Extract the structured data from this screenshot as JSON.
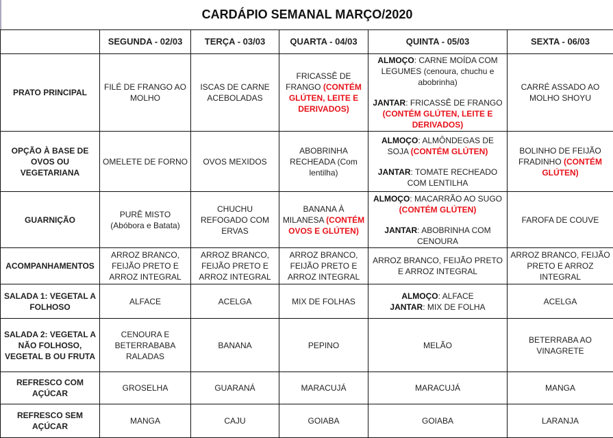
{
  "title": "CARDÁPIO SEMANAL MARÇO/2020",
  "colors": {
    "allergen_warning": "#e8121a",
    "border": "#111111"
  },
  "days": [
    "SEGUNDA - 02/03",
    "TERÇA - 03/03",
    "QUARTA - 04/03",
    "QUINTA - 05/03",
    "SEXTA - 06/03"
  ],
  "rows": [
    {
      "label": "PRATO PRINCIPAL",
      "cells": [
        [
          [
            {
              "t": "FILÉ DE FRANGO AO MOLHO"
            }
          ]
        ],
        [
          [
            {
              "t": "ISCAS DE CARNE ACEBOLADAS"
            }
          ]
        ],
        [
          [
            {
              "t": "FRICASSÊ DE FRANGO "
            },
            {
              "t": "(CONTÉM GLÚTEN, LEITE E DERIVADOS)",
              "s": "r"
            }
          ]
        ],
        [
          [
            {
              "t": "ALMOÇO",
              "s": "b"
            },
            {
              "t": ": CARNE MOÍDA COM LEGUMES  (cenoura, chuchu e abobrinha)"
            }
          ],
          "gap",
          [
            {
              "t": "JANTAR",
              "s": "b"
            },
            {
              "t": ": FRICASSÊ DE FRANGO "
            },
            {
              "t": "(CONTÉM GLÚTEN, LEITE E DERIVADOS)",
              "s": "r"
            }
          ]
        ],
        [
          [
            {
              "t": "CARRÉ ASSADO AO MOLHO SHOYU"
            }
          ]
        ]
      ]
    },
    {
      "label": "OPÇÃO À BASE DE OVOS OU VEGETARIANA",
      "cells": [
        [
          [
            {
              "t": "OMELETE DE FORNO"
            }
          ]
        ],
        [
          [
            {
              "t": "OVOS MEXIDOS"
            }
          ]
        ],
        [
          [
            {
              "t": "ABOBRINHA RECHEADA    (Com lentilha)"
            }
          ]
        ],
        [
          [
            {
              "t": "ALMOÇO",
              "s": "b"
            },
            {
              "t": ": ALMÔNDEGAS DE SOJA "
            },
            {
              "t": "(CONTÉM GLÚTEN)",
              "s": "r"
            }
          ],
          "gap",
          [
            {
              "t": "JANTAR",
              "s": "b"
            },
            {
              "t": ": TOMATE RECHEADO COM LENTILHA"
            }
          ]
        ],
        [
          [
            {
              "t": "BOLINHO DE FEIJÃO FRADINHO "
            },
            {
              "t": "(CONTÉM GLÚTEN)",
              "s": "r"
            }
          ]
        ]
      ]
    },
    {
      "label": "GUARNIÇÃO",
      "cells": [
        [
          [
            {
              "t": "PURÊ MISTO (Abóbora e Batata)"
            }
          ]
        ],
        [
          [
            {
              "t": "CHUCHU REFOGADO COM ERVAS"
            }
          ]
        ],
        [
          [
            {
              "t": "BANANA À MILANESA "
            },
            {
              "t": "(CONTÉM OVOS E GLÚTEN)",
              "s": "r"
            }
          ]
        ],
        [
          [
            {
              "t": "ALMOÇO",
              "s": "b"
            },
            {
              "t": ": MACARRÃO AO SUGO "
            },
            {
              "t": "(CONTÉM GLÚTEN)",
              "s": "r"
            }
          ],
          "gap",
          [
            {
              "t": "JANTAR",
              "s": "b"
            },
            {
              "t": ": ABOBRINHA COM CENOURA"
            }
          ]
        ],
        [
          [
            {
              "t": "FAROFA DE COUVE"
            }
          ]
        ]
      ]
    },
    {
      "label": "ACOMPANHAMENTOS",
      "cells": [
        [
          [
            {
              "t": "ARROZ BRANCO, FEIJÃO PRETO E ARROZ INTEGRAL"
            }
          ]
        ],
        [
          [
            {
              "t": "ARROZ BRANCO, FEIJÃO PRETO E ARROZ INTEGRAL"
            }
          ]
        ],
        [
          [
            {
              "t": "ARROZ BRANCO, FEIJÃO PRETO E ARROZ INTEGRAL"
            }
          ]
        ],
        [
          [
            {
              "t": "ARROZ BRANCO, FEIJÃO PRETO E ARROZ INTEGRAL"
            }
          ]
        ],
        [
          [
            {
              "t": "ARROZ BRANCO, FEIJÃO PRETO E ARROZ INTEGRAL"
            }
          ]
        ]
      ]
    },
    {
      "label": "SALADA 1: VEGETAL A FOLHOSO",
      "cells": [
        [
          [
            {
              "t": "ALFACE"
            }
          ]
        ],
        [
          [
            {
              "t": "ACELGA"
            }
          ]
        ],
        [
          [
            {
              "t": "MIX DE FOLHAS"
            }
          ]
        ],
        [
          [
            {
              "t": "ALMOÇO",
              "s": "b"
            },
            {
              "t": ": ALFACE"
            }
          ],
          [
            {
              "t": "JANTAR",
              "s": "b"
            },
            {
              "t": ": MIX DE FOLHA"
            }
          ]
        ],
        [
          [
            {
              "t": "ACELGA"
            }
          ]
        ]
      ]
    },
    {
      "label": "SALADA 2: VEGETAL A NÃO FOLHOSO, VEGETAL B OU FRUTA",
      "cells": [
        [
          [
            {
              "t": "CENOURA E BETERRABABA RALADAS"
            }
          ]
        ],
        [
          [
            {
              "t": "BANANA"
            }
          ]
        ],
        [
          [
            {
              "t": "PEPINO"
            }
          ]
        ],
        [
          [
            {
              "t": "MELÃO"
            }
          ]
        ],
        [
          [
            {
              "t": "BETERRABA AO VINAGRETE"
            }
          ]
        ]
      ]
    },
    {
      "label": "REFRESCO COM AÇÚCAR",
      "cells": [
        [
          [
            {
              "t": "GROSELHA"
            }
          ]
        ],
        [
          [
            {
              "t": "GUARANÁ"
            }
          ]
        ],
        [
          [
            {
              "t": "MARACUJÁ"
            }
          ]
        ],
        [
          [
            {
              "t": "MARACUJÁ"
            }
          ]
        ],
        [
          [
            {
              "t": "MANGA"
            }
          ]
        ]
      ]
    },
    {
      "label": "REFRESCO SEM AÇÚCAR",
      "cells": [
        [
          [
            {
              "t": "MANGA"
            }
          ]
        ],
        [
          [
            {
              "t": "CAJU"
            }
          ]
        ],
        [
          [
            {
              "t": "GOIABA"
            }
          ]
        ],
        [
          [
            {
              "t": "GOIABA"
            }
          ]
        ],
        [
          [
            {
              "t": "LARANJA"
            }
          ]
        ]
      ]
    }
  ]
}
